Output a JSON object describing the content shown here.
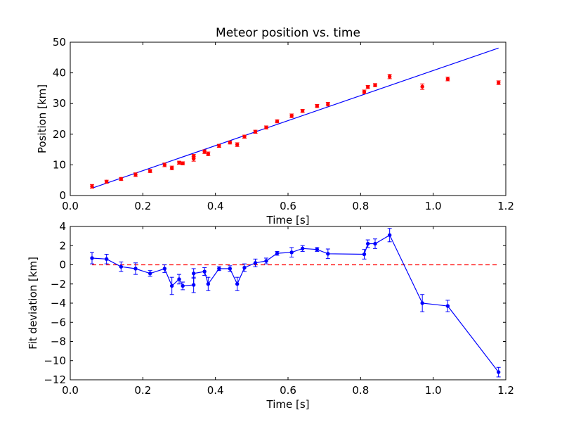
{
  "chart_data": [
    {
      "type": "scatter",
      "title": "Meteor position vs. time",
      "xlabel": "Time [s]",
      "ylabel": "Position [km]",
      "xlim": [
        0.0,
        1.2
      ],
      "ylim": [
        0,
        50
      ],
      "xticks": [
        "0.0",
        "0.2",
        "0.4",
        "0.6",
        "0.8",
        "1.0",
        "1.2"
      ],
      "yticks": [
        "0",
        "10",
        "20",
        "30",
        "40",
        "50"
      ],
      "grid": false,
      "series": [
        {
          "kind": "errorbar-points",
          "color": "#ff0000",
          "x": [
            0.06,
            0.1,
            0.14,
            0.18,
            0.22,
            0.26,
            0.28,
            0.3,
            0.31,
            0.34,
            0.34,
            0.37,
            0.38,
            0.41,
            0.44,
            0.46,
            0.48,
            0.51,
            0.54,
            0.57,
            0.61,
            0.64,
            0.68,
            0.71,
            0.81,
            0.82,
            0.84,
            0.88,
            0.97,
            1.04,
            1.18
          ],
          "y": [
            3.0,
            4.5,
            5.4,
            6.8,
            8.0,
            10.0,
            9.0,
            10.7,
            10.5,
            12.0,
            12.8,
            14.3,
            13.6,
            16.2,
            17.3,
            16.6,
            19.2,
            20.8,
            22.2,
            24.2,
            26.0,
            27.6,
            29.2,
            29.8,
            33.8,
            35.4,
            36.0,
            38.8,
            35.5,
            38.0,
            36.8
          ],
          "yerr": [
            0.6,
            0.5,
            0.5,
            0.6,
            0.5,
            0.6,
            0.6,
            0.5,
            0.5,
            0.8,
            0.6,
            0.6,
            0.6,
            0.5,
            0.5,
            0.6,
            0.5,
            0.5,
            0.5,
            0.5,
            0.6,
            0.5,
            0.5,
            0.6,
            0.6,
            0.5,
            0.5,
            0.7,
            0.9,
            0.6,
            0.6
          ]
        },
        {
          "kind": "fit-line",
          "color": "#0000ff",
          "x": [
            0.06,
            1.18
          ],
          "y": [
            2.4,
            48.1
          ]
        }
      ]
    },
    {
      "type": "line",
      "title": "",
      "xlabel": "Time [s]",
      "ylabel": "Fit deviation [km]",
      "xlim": [
        0.0,
        1.2
      ],
      "ylim": [
        -12,
        4
      ],
      "xticks": [
        "0.0",
        "0.2",
        "0.4",
        "0.6",
        "0.8",
        "1.0",
        "1.2"
      ],
      "yticks": [
        "−12",
        "−10",
        "−8",
        "−6",
        "−4",
        "−2",
        "0",
        "2",
        "4"
      ],
      "grid": false,
      "reference_line": {
        "y": 0,
        "color": "#ff0000",
        "style": "dashed"
      },
      "series": [
        {
          "kind": "errorbar-line",
          "color": "#0000ff",
          "x": [
            0.06,
            0.1,
            0.14,
            0.18,
            0.22,
            0.26,
            0.28,
            0.3,
            0.31,
            0.34,
            0.34,
            0.37,
            0.38,
            0.41,
            0.44,
            0.46,
            0.48,
            0.51,
            0.54,
            0.57,
            0.61,
            0.64,
            0.68,
            0.71,
            0.81,
            0.82,
            0.84,
            0.88,
            0.97,
            1.04,
            1.18
          ],
          "y": [
            0.7,
            0.6,
            -0.2,
            -0.4,
            -0.9,
            -0.4,
            -2.2,
            -1.5,
            -2.2,
            -2.1,
            -0.9,
            -0.7,
            -2.0,
            -0.4,
            -0.4,
            -2.0,
            -0.3,
            0.2,
            0.4,
            1.2,
            1.3,
            1.7,
            1.6,
            1.15,
            1.1,
            2.2,
            2.2,
            3.1,
            -4.0,
            -4.3,
            -11.2
          ],
          "yerr": [
            0.6,
            0.5,
            0.5,
            0.6,
            0.3,
            0.4,
            0.9,
            0.5,
            0.4,
            0.8,
            0.5,
            0.4,
            0.7,
            0.2,
            0.3,
            0.7,
            0.4,
            0.4,
            0.3,
            0.2,
            0.5,
            0.3,
            0.2,
            0.5,
            0.5,
            0.4,
            0.5,
            0.7,
            0.9,
            0.6,
            0.5
          ]
        }
      ]
    }
  ]
}
